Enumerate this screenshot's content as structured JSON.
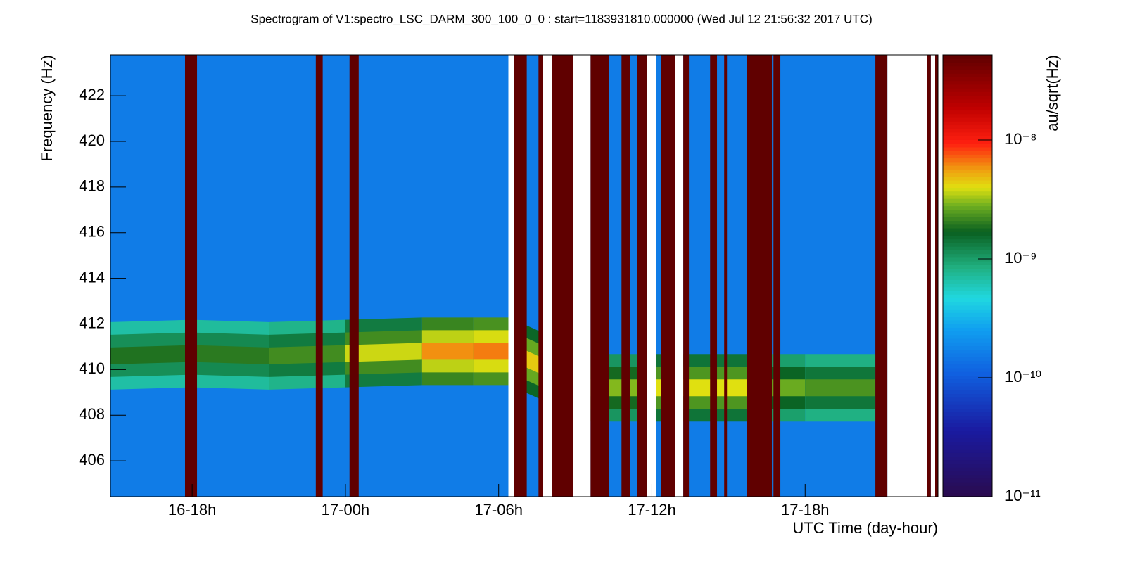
{
  "chart_data": {
    "type": "spectrogram",
    "title": "Spectrogram of V1:spectro_LSC_DARM_300_100_0_0 : start=1183931810.000000 (Wed Jul 12 21:56:32 2017 UTC)",
    "xlabel": "UTC Time (day-hour)",
    "ylabel": "Frequency (Hz)",
    "zlabel": "au/sqrt(Hz)",
    "xlim": [
      14.8,
      47.2
    ],
    "xticks": [
      {
        "value": 18,
        "label": "16-18h"
      },
      {
        "value": 24,
        "label": "17-00h"
      },
      {
        "value": 30,
        "label": "17-06h"
      },
      {
        "value": 36,
        "label": "17-12h"
      },
      {
        "value": 42,
        "label": "17-18h"
      }
    ],
    "ylim": [
      404.43,
      423.79
    ],
    "yticks": [
      406,
      408,
      410,
      412,
      414,
      416,
      418,
      420,
      422
    ],
    "zlim": [
      1e-11,
      5.2e-08
    ],
    "zscale": "log",
    "zticks": [
      {
        "value": 1e-11,
        "label": "10⁻¹¹"
      },
      {
        "value": 1e-10,
        "label": "10⁻¹⁰"
      },
      {
        "value": 1e-09,
        "label": "10⁻⁹"
      },
      {
        "value": 1e-08,
        "label": "10⁻⁸"
      }
    ],
    "background": 1.6e-10,
    "ridge": {
      "x": [
        14.8,
        18,
        21,
        24,
        27,
        29,
        30.4,
        33.6,
        36,
        38.5,
        40,
        42,
        44.75
      ],
      "frequency": [
        410.6,
        410.7,
        410.6,
        410.7,
        410.8,
        410.8,
        410.8,
        409.2,
        409.2,
        409.2,
        409.2,
        409.2,
        409.2
      ],
      "amplitude": [
        1.8e-09,
        2e-09,
        2e-09,
        2.5e-09,
        5e-09,
        7e-09,
        6e-09,
        3e-09,
        3e-09,
        5e-09,
        3e-09,
        2.5e-09,
        2.2e-09
      ]
    },
    "saturated": [
      [
        17.72,
        18.19
      ],
      [
        22.84,
        23.11
      ],
      [
        24.16,
        24.52
      ],
      [
        30.6,
        31.1
      ],
      [
        31.56,
        31.73
      ],
      [
        32.09,
        32.91
      ],
      [
        33.6,
        34.32
      ],
      [
        34.81,
        35.14
      ],
      [
        35.42,
        35.8
      ],
      [
        36.35,
        36.9
      ],
      [
        37.23,
        37.45
      ],
      [
        38.28,
        38.55
      ],
      [
        38.83,
        38.94
      ],
      [
        39.71,
        40.7
      ],
      [
        40.76,
        41.03
      ],
      [
        44.75,
        45.22
      ],
      [
        46.76,
        46.92
      ],
      [
        47.09,
        47.2
      ]
    ],
    "blank": [
      [
        30.38,
        30.6
      ],
      [
        31.73,
        32.09
      ],
      [
        32.91,
        33.6
      ],
      [
        35.8,
        36.16
      ],
      [
        36.9,
        37.23
      ],
      [
        45.22,
        46.76
      ],
      [
        46.92,
        47.09
      ]
    ]
  }
}
